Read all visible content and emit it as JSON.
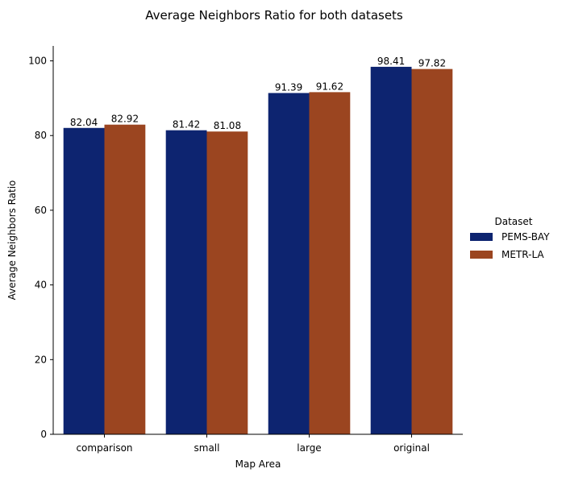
{
  "chart_data": {
    "type": "bar",
    "title": "Average Neighbors Ratio for both datasets",
    "xlabel": "Map Area",
    "ylabel": "Average Neighbors Ratio",
    "categories": [
      "comparison",
      "small",
      "large",
      "original"
    ],
    "series": [
      {
        "name": "PEMS-BAY",
        "values": [
          82.04,
          81.42,
          91.39,
          98.41
        ],
        "color": "#0d2470"
      },
      {
        "name": "METR-LA",
        "values": [
          82.92,
          81.08,
          91.62,
          97.82
        ],
        "color": "#9b4520"
      }
    ],
    "data_labels": [
      [
        "82.04",
        "81.42",
        "91.39",
        "98.41"
      ],
      [
        "82.92",
        "81.08",
        "91.62",
        "97.82"
      ]
    ],
    "ylim": [
      0,
      104
    ],
    "yticks": [
      0,
      20,
      40,
      60,
      80,
      100
    ],
    "ytick_labels": [
      "0",
      "20",
      "40",
      "60",
      "80",
      "100"
    ],
    "grid": false,
    "legend": {
      "title": "Dataset",
      "placement": "right"
    }
  }
}
